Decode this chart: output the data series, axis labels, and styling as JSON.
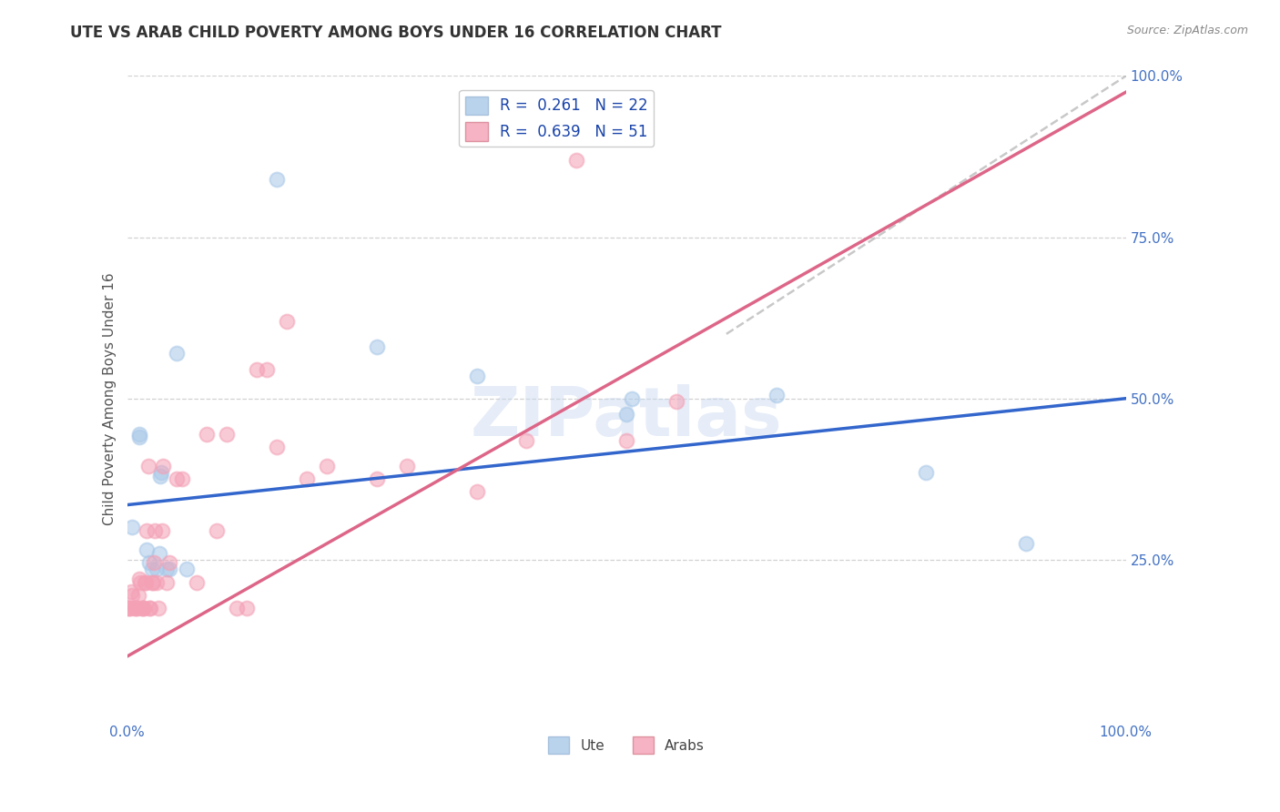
{
  "title": "UTE VS ARAB CHILD POVERTY AMONG BOYS UNDER 16 CORRELATION CHART",
  "source": "Source: ZipAtlas.com",
  "ylabel": "Child Poverty Among Boys Under 16",
  "watermark": "ZIPatlas",
  "ute_R": 0.261,
  "ute_N": 22,
  "arab_R": 0.639,
  "arab_N": 51,
  "ute_color": "#a8c8e8",
  "arab_color": "#f4a0b5",
  "ute_line_color": "#3366cc",
  "arab_line_color": "#dd6688",
  "diagonal_color": "#bbbbbb",
  "ute_scatter": [
    [
      0.005,
      0.3
    ],
    [
      0.012,
      0.44
    ],
    [
      0.012,
      0.445
    ],
    [
      0.02,
      0.265
    ],
    [
      0.022,
      0.245
    ],
    [
      0.025,
      0.235
    ],
    [
      0.03,
      0.235
    ],
    [
      0.032,
      0.26
    ],
    [
      0.033,
      0.38
    ],
    [
      0.034,
      0.385
    ],
    [
      0.04,
      0.235
    ],
    [
      0.042,
      0.235
    ],
    [
      0.05,
      0.57
    ],
    [
      0.06,
      0.235
    ],
    [
      0.15,
      0.84
    ],
    [
      0.25,
      0.58
    ],
    [
      0.35,
      0.535
    ],
    [
      0.5,
      0.475
    ],
    [
      0.505,
      0.5
    ],
    [
      0.65,
      0.505
    ],
    [
      0.8,
      0.385
    ],
    [
      0.9,
      0.275
    ]
  ],
  "arab_scatter": [
    [
      0.0,
      0.175
    ],
    [
      0.002,
      0.175
    ],
    [
      0.003,
      0.175
    ],
    [
      0.004,
      0.2
    ],
    [
      0.005,
      0.195
    ],
    [
      0.008,
      0.175
    ],
    [
      0.009,
      0.175
    ],
    [
      0.01,
      0.175
    ],
    [
      0.011,
      0.195
    ],
    [
      0.012,
      0.22
    ],
    [
      0.013,
      0.215
    ],
    [
      0.015,
      0.175
    ],
    [
      0.016,
      0.175
    ],
    [
      0.017,
      0.175
    ],
    [
      0.018,
      0.215
    ],
    [
      0.019,
      0.215
    ],
    [
      0.02,
      0.295
    ],
    [
      0.021,
      0.395
    ],
    [
      0.022,
      0.175
    ],
    [
      0.023,
      0.175
    ],
    [
      0.025,
      0.215
    ],
    [
      0.026,
      0.215
    ],
    [
      0.027,
      0.245
    ],
    [
      0.028,
      0.295
    ],
    [
      0.03,
      0.215
    ],
    [
      0.031,
      0.175
    ],
    [
      0.035,
      0.295
    ],
    [
      0.036,
      0.395
    ],
    [
      0.04,
      0.215
    ],
    [
      0.042,
      0.245
    ],
    [
      0.05,
      0.375
    ],
    [
      0.055,
      0.375
    ],
    [
      0.07,
      0.215
    ],
    [
      0.08,
      0.445
    ],
    [
      0.09,
      0.295
    ],
    [
      0.1,
      0.445
    ],
    [
      0.11,
      0.175
    ],
    [
      0.12,
      0.175
    ],
    [
      0.13,
      0.545
    ],
    [
      0.14,
      0.545
    ],
    [
      0.15,
      0.425
    ],
    [
      0.16,
      0.62
    ],
    [
      0.18,
      0.375
    ],
    [
      0.2,
      0.395
    ],
    [
      0.25,
      0.375
    ],
    [
      0.28,
      0.395
    ],
    [
      0.35,
      0.355
    ],
    [
      0.4,
      0.435
    ],
    [
      0.45,
      0.87
    ],
    [
      0.5,
      0.435
    ],
    [
      0.55,
      0.495
    ]
  ],
  "xlim": [
    0.0,
    1.0
  ],
  "ylim": [
    0.0,
    1.0
  ],
  "xticks": [
    0.0,
    1.0
  ],
  "xtick_labels": [
    "0.0%",
    "100.0%"
  ],
  "yticks": [
    0.25,
    0.5,
    0.75,
    1.0
  ],
  "ytick_labels": [
    "25.0%",
    "50.0%",
    "75.0%",
    "100.0%"
  ],
  "ute_line_x": [
    0.0,
    1.0
  ],
  "ute_line_y": [
    0.335,
    0.5
  ],
  "arab_line_x": [
    0.0,
    1.0
  ],
  "arab_line_y": [
    0.1,
    0.975
  ],
  "diag_line_x": [
    0.6,
    1.02
  ],
  "diag_line_y": [
    0.6,
    1.02
  ],
  "background_color": "#ffffff",
  "grid_color": "#cccccc",
  "title_color": "#333333",
  "axis_label_color": "#555555",
  "tick_label_color": "#4472c4",
  "legend_r_color": "#1a44aa",
  "marker_size": 130
}
